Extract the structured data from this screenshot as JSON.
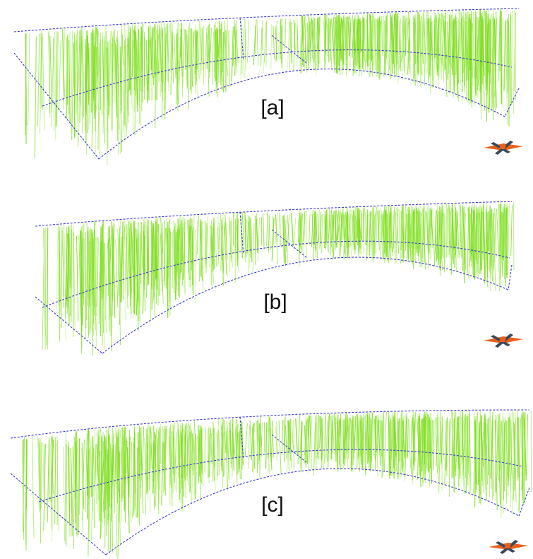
{
  "figure": {
    "panels": [
      {
        "label": "[a]",
        "variant": "a"
      },
      {
        "label": "[b]",
        "variant": "b"
      },
      {
        "label": "[c]",
        "variant": "c"
      }
    ]
  },
  "colors": {
    "background": "#ffffff",
    "vector_field": "#7ddc1f",
    "vector_field_light": "#a6ec5c",
    "wireframe": "#3a3ad0",
    "axis_icon_orange": "#e8601c",
    "axis_icon_dark": "#3b4a5a",
    "label_text": "#111111"
  },
  "icons": {
    "axis_triad": "axis-triad-icon"
  }
}
